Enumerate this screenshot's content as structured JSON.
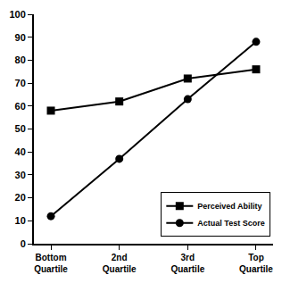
{
  "chart_data": {
    "type": "line",
    "categories": [
      "Bottom Quartile",
      "2nd Quartile",
      "3rd Quartile",
      "Top Quartile"
    ],
    "series": [
      {
        "name": "Perceived Ability",
        "color": "#000000",
        "marker": "square",
        "line_style": "solid",
        "values": [
          58,
          62,
          72,
          76
        ]
      },
      {
        "name": "Actual Test Score",
        "color": "#000000",
        "marker": "circle",
        "line_style": "solid",
        "values": [
          12,
          37,
          63,
          88
        ]
      }
    ],
    "ylim": [
      0,
      100
    ],
    "yticks": [
      0,
      10,
      20,
      30,
      40,
      50,
      60,
      70,
      80,
      90,
      100
    ],
    "grid": false,
    "legend": "lower right"
  }
}
